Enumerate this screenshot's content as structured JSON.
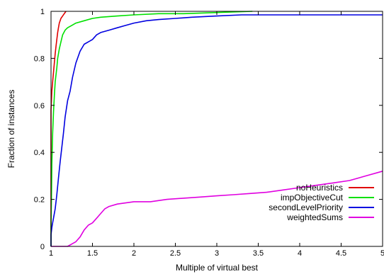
{
  "chart_data": {
    "type": "line",
    "title": "",
    "xlabel": "Multiple of virtual best",
    "ylabel": "Fraction of instances",
    "xlim": [
      1,
      5
    ],
    "ylim": [
      0,
      1
    ],
    "x_ticks": [
      "1",
      "1.5",
      "2",
      "2.5",
      "3",
      "3.5",
      "4",
      "4.5",
      "5"
    ],
    "y_ticks": [
      "0",
      "0.2",
      "0.4",
      "0.6",
      "0.8",
      "1"
    ],
    "grid": false,
    "legend_position": "bottom-right",
    "series": [
      {
        "name": "noHeuristics",
        "color": "#e00000",
        "points": [
          [
            1.0,
            0.0
          ],
          [
            1.0,
            0.58
          ],
          [
            1.005,
            0.62
          ],
          [
            1.01,
            0.66
          ],
          [
            1.02,
            0.7
          ],
          [
            1.03,
            0.74
          ],
          [
            1.04,
            0.78
          ],
          [
            1.05,
            0.82
          ],
          [
            1.06,
            0.85
          ],
          [
            1.07,
            0.88
          ],
          [
            1.08,
            0.91
          ],
          [
            1.09,
            0.93
          ],
          [
            1.1,
            0.95
          ],
          [
            1.12,
            0.97
          ],
          [
            1.14,
            0.98
          ],
          [
            1.16,
            0.99
          ],
          [
            1.18,
            1.0
          ]
        ]
      },
      {
        "name": "impObjectiveCut",
        "color": "#00e000",
        "points": [
          [
            1.0,
            0.0
          ],
          [
            1.0,
            0.1
          ],
          [
            1.005,
            0.2
          ],
          [
            1.01,
            0.35
          ],
          [
            1.02,
            0.48
          ],
          [
            1.03,
            0.57
          ],
          [
            1.04,
            0.64
          ],
          [
            1.05,
            0.7
          ],
          [
            1.07,
            0.76
          ],
          [
            1.08,
            0.8
          ],
          [
            1.1,
            0.84
          ],
          [
            1.12,
            0.87
          ],
          [
            1.14,
            0.9
          ],
          [
            1.17,
            0.92
          ],
          [
            1.2,
            0.93
          ],
          [
            1.25,
            0.94
          ],
          [
            1.3,
            0.95
          ],
          [
            1.4,
            0.96
          ],
          [
            1.5,
            0.97
          ],
          [
            1.6,
            0.975
          ],
          [
            1.8,
            0.98
          ],
          [
            2.0,
            0.985
          ],
          [
            2.3,
            0.99
          ],
          [
            2.6,
            0.99
          ],
          [
            3.0,
            0.995
          ],
          [
            3.43,
            1.0
          ]
        ]
      },
      {
        "name": "secondLevelPriority",
        "color": "#0000e0",
        "points": [
          [
            1.0,
            0.0
          ],
          [
            1.0,
            0.05
          ],
          [
            1.01,
            0.08
          ],
          [
            1.02,
            0.1
          ],
          [
            1.03,
            0.12
          ],
          [
            1.05,
            0.16
          ],
          [
            1.07,
            0.22
          ],
          [
            1.09,
            0.29
          ],
          [
            1.11,
            0.36
          ],
          [
            1.13,
            0.42
          ],
          [
            1.15,
            0.48
          ],
          [
            1.17,
            0.55
          ],
          [
            1.2,
            0.62
          ],
          [
            1.23,
            0.66
          ],
          [
            1.26,
            0.72
          ],
          [
            1.3,
            0.78
          ],
          [
            1.35,
            0.83
          ],
          [
            1.4,
            0.86
          ],
          [
            1.45,
            0.87
          ],
          [
            1.5,
            0.88
          ],
          [
            1.55,
            0.9
          ],
          [
            1.6,
            0.91
          ],
          [
            1.7,
            0.92
          ],
          [
            1.8,
            0.93
          ],
          [
            1.9,
            0.94
          ],
          [
            2.0,
            0.95
          ],
          [
            2.15,
            0.96
          ],
          [
            2.3,
            0.965
          ],
          [
            2.5,
            0.97
          ],
          [
            2.7,
            0.975
          ],
          [
            3.0,
            0.98
          ],
          [
            3.3,
            0.985
          ],
          [
            3.7,
            0.985
          ],
          [
            4.2,
            0.985
          ],
          [
            5.0,
            0.985
          ]
        ]
      },
      {
        "name": "weightedSums",
        "color": "#e000e0",
        "points": [
          [
            1.0,
            0.0
          ],
          [
            1.2,
            0.0
          ],
          [
            1.25,
            0.01
          ],
          [
            1.3,
            0.02
          ],
          [
            1.35,
            0.04
          ],
          [
            1.4,
            0.07
          ],
          [
            1.45,
            0.09
          ],
          [
            1.5,
            0.1
          ],
          [
            1.55,
            0.12
          ],
          [
            1.6,
            0.14
          ],
          [
            1.65,
            0.16
          ],
          [
            1.7,
            0.17
          ],
          [
            1.8,
            0.18
          ],
          [
            1.9,
            0.185
          ],
          [
            2.0,
            0.19
          ],
          [
            2.2,
            0.19
          ],
          [
            2.4,
            0.2
          ],
          [
            2.6,
            0.205
          ],
          [
            2.8,
            0.21
          ],
          [
            3.0,
            0.215
          ],
          [
            3.2,
            0.22
          ],
          [
            3.4,
            0.225
          ],
          [
            3.6,
            0.23
          ],
          [
            3.8,
            0.24
          ],
          [
            4.0,
            0.25
          ],
          [
            4.2,
            0.26
          ],
          [
            4.4,
            0.27
          ],
          [
            4.6,
            0.28
          ],
          [
            4.8,
            0.3
          ],
          [
            5.0,
            0.32
          ]
        ]
      }
    ]
  }
}
